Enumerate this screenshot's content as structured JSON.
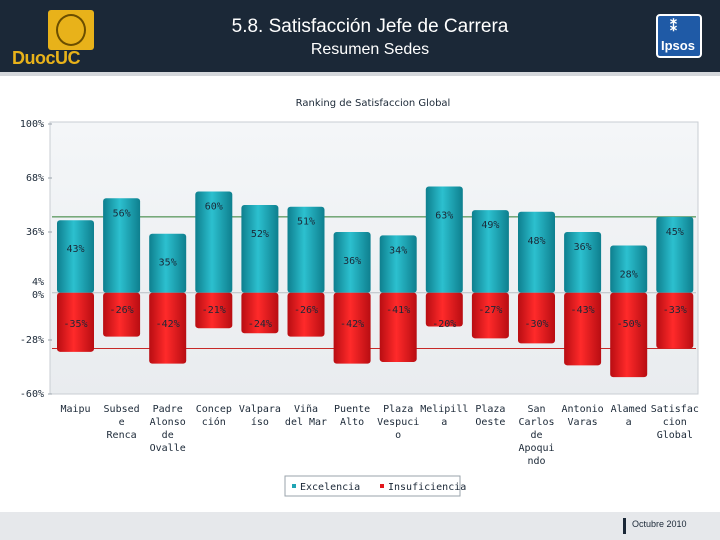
{
  "header": {
    "title": "5.8. Satisfacción Jefe de Carrera",
    "subtitle": "Resumen Sedes",
    "logo_text": "DuocUC",
    "ipsos_text": "Ipsos"
  },
  "footer": {
    "date": "Octubre 2010"
  },
  "colors": {
    "excelencia": "#1fa4b4",
    "insuficiencia": "#e3171c",
    "header_bg": "#1b2837",
    "gold": "#e8b21a"
  },
  "chart_data": {
    "type": "bar",
    "title": "Ranking de Satisfaccion Global",
    "xlabel": "",
    "ylabel": "",
    "ylim": [
      -60,
      100
    ],
    "y_ticks": [
      {
        "label": "100%",
        "value": 100
      },
      {
        "label": "68%",
        "value": 68
      },
      {
        "label": "36%",
        "value": 36
      },
      {
        "label": "4%",
        "value": 4
      },
      {
        "label": "0%",
        "value": 0
      },
      {
        "label": "-28%",
        "value": -28
      },
      {
        "label": "-60%",
        "value": -60
      }
    ],
    "reference_lines": [
      45,
      -33
    ],
    "category_lines": [
      [
        "Maipu"
      ],
      [
        "Subsed",
        "e",
        "Renca"
      ],
      [
        "Padre",
        "Alonso",
        "de",
        "Ovalle"
      ],
      [
        "Concep",
        "ción"
      ],
      [
        "Valpara",
        "íso"
      ],
      [
        "Viña",
        "del Mar"
      ],
      [
        "Puente",
        "Alto"
      ],
      [
        "Plaza",
        "Vespuci",
        "o"
      ],
      [
        "Melipill",
        "a"
      ],
      [
        "Plaza",
        "Oeste"
      ],
      [
        "San",
        "Carlos",
        "de",
        "Apoqui",
        "ndo"
      ],
      [
        "Antonio",
        "Varas"
      ],
      [
        "Alamed",
        "a"
      ],
      [
        "Satisfac",
        "cion",
        "Global"
      ]
    ],
    "series": [
      {
        "name": "Excelencia",
        "values": [
          43,
          56,
          35,
          60,
          52,
          51,
          36,
          34,
          63,
          49,
          48,
          36,
          28,
          45
        ],
        "labels": [
          "43%",
          "56%",
          "35%",
          "60%",
          "52%",
          "51%",
          "36%",
          "34%",
          "63%",
          "49%",
          "48%",
          "36%",
          "28%",
          "45%"
        ]
      },
      {
        "name": "Insuficiencia",
        "values": [
          -35,
          -26,
          -42,
          -21,
          -24,
          -26,
          -42,
          -41,
          -20,
          -27,
          -30,
          -43,
          -50,
          -33
        ],
        "labels": [
          "-35%",
          "-26%",
          "-42%",
          "-21%",
          "-24%",
          "-26%",
          "-42%",
          "-41%",
          "-20%",
          "-27%",
          "-30%",
          "-43%",
          "-50%",
          "-33%"
        ]
      }
    ],
    "legend": [
      "Excelencia",
      "Insuficiencia"
    ],
    "legend_position": "bottom-center"
  }
}
